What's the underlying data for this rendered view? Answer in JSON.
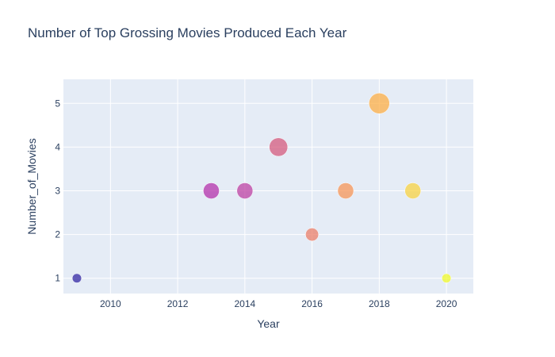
{
  "chart_data": {
    "type": "scatter",
    "title": "Number of Top Grossing Movies Produced Each Year",
    "xlabel": "Year",
    "ylabel": "Number_of_Movies",
    "xlim": [
      2008.6,
      2020.8
    ],
    "ylim": [
      0.65,
      5.55
    ],
    "xticks": [
      2010,
      2012,
      2014,
      2016,
      2018,
      2020
    ],
    "yticks": [
      1,
      2,
      3,
      4,
      5
    ],
    "grid": true,
    "legend": "none",
    "size_by": "Number_of_Movies",
    "colorscale": "plasma",
    "points": [
      {
        "x": 2009,
        "y": 1,
        "color": "#2b1ea0"
      },
      {
        "x": 2013,
        "y": 3,
        "color": "#b12aa8"
      },
      {
        "x": 2014,
        "y": 3,
        "color": "#bb3aa0"
      },
      {
        "x": 2015,
        "y": 4,
        "color": "#d45579"
      },
      {
        "x": 2016,
        "y": 2,
        "color": "#ea7a62"
      },
      {
        "x": 2017,
        "y": 3,
        "color": "#f69150"
      },
      {
        "x": 2018,
        "y": 5,
        "color": "#fdac3e"
      },
      {
        "x": 2019,
        "y": 3,
        "color": "#f8d13b"
      },
      {
        "x": 2020,
        "y": 1,
        "color": "#f0f921"
      }
    ]
  },
  "style": {
    "plot_bg": "#e5ecf6",
    "grid_color": "#ffffff",
    "text_color": "#2a3f5f"
  }
}
